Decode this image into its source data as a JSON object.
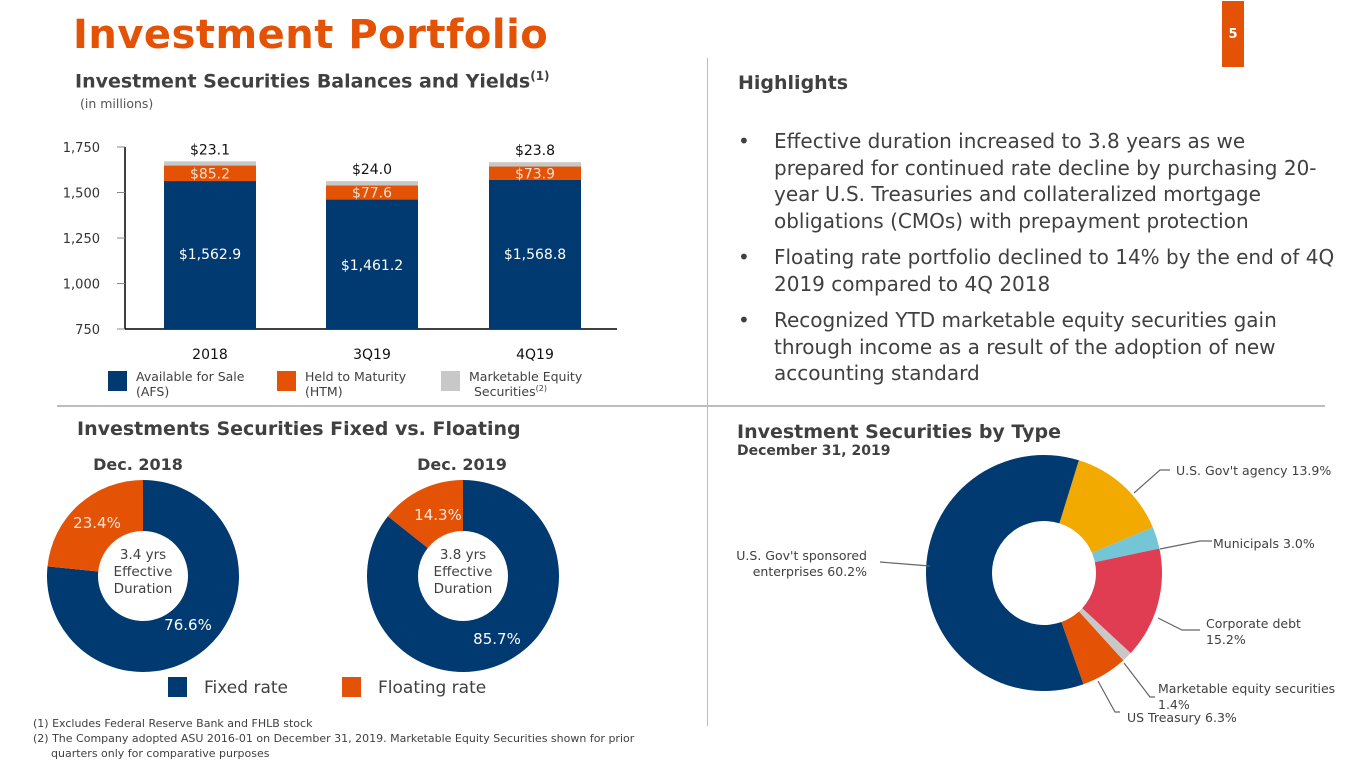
{
  "header": {
    "title": "Investment Portfolio",
    "page_number": "5"
  },
  "colors": {
    "navy": "#003a70",
    "orange": "#e35205",
    "gray": "#c8c8c8",
    "gold": "#f2a900",
    "light_blue": "#74c6d7",
    "red": "#e03c52",
    "text": "#404040"
  },
  "bar_section": {
    "title": "Investment Securities Balances and Yields",
    "title_sup": "(1)",
    "subtitle": "(in millions)"
  },
  "highlights": {
    "title": "Highlights",
    "items": [
      "Effective duration increased to 3.8 years as we prepared for continued rate decline by purchasing 20-year U.S. Treasuries and collateralized mortgage obligations (CMOs) with prepayment protection",
      "Floating rate portfolio declined to 14% by the end of 4Q 2019 compared to 4Q 2018",
      "Recognized YTD marketable equity securities gain through income as a result of the adoption of new accounting standard"
    ],
    "bullet": "•"
  },
  "fixed_floating": {
    "title": "Investments Securities Fixed vs. Floating",
    "legend": [
      {
        "label": "Fixed rate",
        "color": "#003a70"
      },
      {
        "label": "Floating rate",
        "color": "#e35205"
      }
    ]
  },
  "by_type": {
    "title": "Investment Securities by Type",
    "subtitle": "December 31, 2019"
  },
  "footnotes": [
    "(1) Excludes Federal Reserve Bank and FHLB stock",
    "(2) The Company adopted ASU 2016-01 on December 31, 2019. Marketable Equity Securities shown for prior",
    "quarters only for comparative purposes"
  ],
  "chart_data": [
    {
      "type": "bar",
      "stacked": true,
      "title": "Investment Securities Balances and Yields",
      "subtitle": "(in millions)",
      "categories": [
        "2018",
        "3Q19",
        "4Q19"
      ],
      "ylim": [
        750,
        1750
      ],
      "yticks": [
        750,
        1000,
        1250,
        1500,
        1750
      ],
      "ytick_labels": [
        "750",
        "1,000",
        "1,250",
        "1,500",
        "1,750"
      ],
      "series": [
        {
          "name": "Available for Sale (AFS)",
          "legend_lines": [
            "Available for Sale",
            "(AFS)"
          ],
          "color": "#003a70",
          "values": [
            1562.9,
            1461.2,
            1568.8
          ],
          "labels": [
            "$1,562.9",
            "$1,461.2",
            "$1,568.8"
          ]
        },
        {
          "name": "Held to Maturity (HTM)",
          "legend_lines": [
            "Held to Maturity",
            "(HTM)"
          ],
          "color": "#e35205",
          "values": [
            85.2,
            77.6,
            73.9
          ],
          "labels": [
            "$85.2",
            "$77.6",
            "$73.9"
          ]
        },
        {
          "name": "Marketable Equity Securities(2)",
          "legend_lines": [
            "Marketable Equity",
            "Securities"
          ],
          "legend_sup": "(2)",
          "color": "#c8c8c8",
          "values": [
            23.1,
            24.0,
            23.8
          ],
          "labels": [
            "$23.1",
            "$24.0",
            "$23.8"
          ]
        }
      ],
      "legend": "bottom"
    },
    {
      "type": "pie",
      "donut": true,
      "title": "Dec. 2018",
      "center_text": [
        "3.4 yrs",
        "Effective",
        "Duration"
      ],
      "slices": [
        {
          "name": "Fixed rate",
          "value": 76.6,
          "label": "76.6%",
          "color": "#003a70"
        },
        {
          "name": "Floating rate",
          "value": 23.4,
          "label": "23.4%",
          "color": "#e35205"
        }
      ]
    },
    {
      "type": "pie",
      "donut": true,
      "title": "Dec. 2019",
      "center_text": [
        "3.8 yrs",
        "Effective",
        "Duration"
      ],
      "slices": [
        {
          "name": "Fixed rate",
          "value": 85.7,
          "label": "85.7%",
          "color": "#003a70"
        },
        {
          "name": "Floating rate",
          "value": 14.3,
          "label": "14.3%",
          "color": "#e35205"
        }
      ]
    },
    {
      "type": "pie",
      "donut": true,
      "title": "Investment Securities by Type",
      "subtitle": "December 31, 2019",
      "slices": [
        {
          "name": "U.S. Gov't agency",
          "value": 13.9,
          "label_lines": [
            "U.S. Gov't agency  13.9%"
          ],
          "color": "#f2a900"
        },
        {
          "name": "Municipals",
          "value": 3.0,
          "label_lines": [
            "Municipals  3.0%"
          ],
          "color": "#74c6d7"
        },
        {
          "name": "Corporate debt",
          "value": 15.2,
          "label_lines": [
            "Corporate debt",
            " 15.2%"
          ],
          "color": "#e03c52"
        },
        {
          "name": "Marketable equity securities",
          "value": 1.4,
          "label_lines": [
            "Marketable equity securities",
            "1.4%"
          ],
          "color": "#c8c8c8"
        },
        {
          "name": "US Treasury",
          "value": 6.3,
          "label_lines": [
            "US Treasury  6.3%"
          ],
          "color": "#e35205"
        },
        {
          "name": "U.S. Gov't sponsored enterprises",
          "value": 60.2,
          "label_lines": [
            "U.S. Gov't sponsored",
            "enterprises  60.2%"
          ],
          "color": "#003a70"
        }
      ]
    }
  ]
}
